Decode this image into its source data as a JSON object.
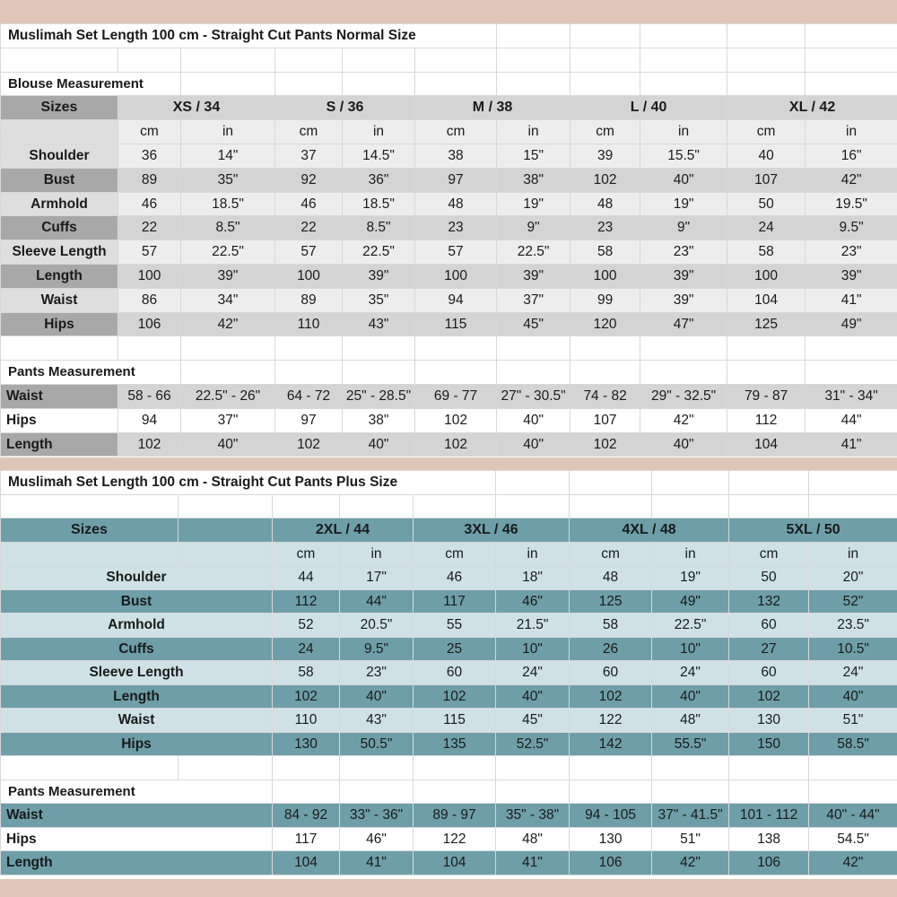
{
  "normal": {
    "title": "Muslimah Set Length 100 cm - Straight Cut Pants Normal Size",
    "blouse_heading": "Blouse Measurement",
    "sizes_label": "Sizes",
    "sizes": [
      "XS / 34",
      "S / 36",
      "M / 38",
      "L / 40",
      "XL / 42"
    ],
    "unit_cm": "cm",
    "unit_in": "in",
    "rows": [
      {
        "label": "Shoulder",
        "values": [
          "36",
          "14\"",
          "37",
          "14.5\"",
          "38",
          "15\"",
          "39",
          "15.5\"",
          "40",
          "16\""
        ]
      },
      {
        "label": "Bust",
        "values": [
          "89",
          "35\"",
          "92",
          "36\"",
          "97",
          "38\"",
          "102",
          "40\"",
          "107",
          "42\""
        ]
      },
      {
        "label": "Armhold",
        "values": [
          "46",
          "18.5\"",
          "46",
          "18.5\"",
          "48",
          "19\"",
          "48",
          "19\"",
          "50",
          "19.5\""
        ]
      },
      {
        "label": "Cuffs",
        "values": [
          "22",
          "8.5\"",
          "22",
          "8.5\"",
          "23",
          "9\"",
          "23",
          "9\"",
          "24",
          "9.5\""
        ]
      },
      {
        "label": "Sleeve Length",
        "values": [
          "57",
          "22.5\"",
          "57",
          "22.5\"",
          "57",
          "22.5\"",
          "58",
          "23\"",
          "58",
          "23\""
        ]
      },
      {
        "label": "Length",
        "values": [
          "100",
          "39\"",
          "100",
          "39\"",
          "100",
          "39\"",
          "100",
          "39\"",
          "100",
          "39\""
        ]
      },
      {
        "label": "Waist",
        "values": [
          "86",
          "34\"",
          "89",
          "35\"",
          "94",
          "37\"",
          "99",
          "39\"",
          "104",
          "41\""
        ]
      },
      {
        "label": "Hips",
        "values": [
          "106",
          "42\"",
          "110",
          "43\"",
          "115",
          "45\"",
          "120",
          "47\"",
          "125",
          "49\""
        ]
      }
    ],
    "pants_heading": "Pants Measurement",
    "pants_rows": [
      {
        "label": "Waist",
        "values": [
          "58 - 66",
          "22.5\" - 26\"",
          "64 - 72",
          "25\" - 28.5\"",
          "69 - 77",
          "27\" - 30.5\"",
          "74 - 82",
          "29\" - 32.5\"",
          "79 - 87",
          "31\" - 34\""
        ]
      },
      {
        "label": "Hips",
        "values": [
          "94",
          "37\"",
          "97",
          "38\"",
          "102",
          "40\"",
          "107",
          "42\"",
          "112",
          "44\""
        ]
      },
      {
        "label": "Length",
        "values": [
          "102",
          "40\"",
          "102",
          "40\"",
          "102",
          "40\"",
          "102",
          "40\"",
          "104",
          "41\""
        ]
      }
    ]
  },
  "plus": {
    "title": "Muslimah Set Length 100 cm - Straight Cut Pants Plus Size",
    "sizes_label": "Sizes",
    "sizes": [
      "2XL / 44",
      "3XL / 46",
      "4XL / 48",
      "5XL / 50"
    ],
    "unit_cm": "cm",
    "unit_in": "in",
    "rows": [
      {
        "label": "Shoulder",
        "values": [
          "44",
          "17\"",
          "46",
          "18\"",
          "48",
          "19\"",
          "50",
          "20\""
        ]
      },
      {
        "label": "Bust",
        "values": [
          "112",
          "44\"",
          "117",
          "46\"",
          "125",
          "49\"",
          "132",
          "52\""
        ]
      },
      {
        "label": "Armhold",
        "values": [
          "52",
          "20.5\"",
          "55",
          "21.5\"",
          "58",
          "22.5\"",
          "60",
          "23.5\""
        ]
      },
      {
        "label": "Cuffs",
        "values": [
          "24",
          "9.5\"",
          "25",
          "10\"",
          "26",
          "10\"",
          "27",
          "10.5\""
        ]
      },
      {
        "label": "Sleeve Length",
        "values": [
          "58",
          "23\"",
          "60",
          "24\"",
          "60",
          "24\"",
          "60",
          "24\""
        ]
      },
      {
        "label": "Length",
        "values": [
          "102",
          "40\"",
          "102",
          "40\"",
          "102",
          "40\"",
          "102",
          "40\""
        ]
      },
      {
        "label": "Waist",
        "values": [
          "110",
          "43\"",
          "115",
          "45\"",
          "122",
          "48\"",
          "130",
          "51\""
        ]
      },
      {
        "label": "Hips",
        "values": [
          "130",
          "50.5\"",
          "135",
          "52.5\"",
          "142",
          "55.5\"",
          "150",
          "58.5\""
        ]
      }
    ],
    "pants_heading": "Pants Measurement",
    "pants_rows": [
      {
        "label": "Waist",
        "values": [
          "84 - 92",
          "33\" - 36\"",
          "89 - 97",
          "35\" - 38\"",
          "94 - 105",
          "37\" - 41.5\"",
          "101 - 112",
          "40\" - 44\""
        ]
      },
      {
        "label": "Hips",
        "values": [
          "117",
          "46\"",
          "122",
          "48\"",
          "130",
          "51\"",
          "138",
          "54.5\""
        ]
      },
      {
        "label": "Length",
        "values": [
          "104",
          "41\"",
          "104",
          "41\"",
          "106",
          "42\"",
          "106",
          "42\""
        ]
      }
    ]
  }
}
